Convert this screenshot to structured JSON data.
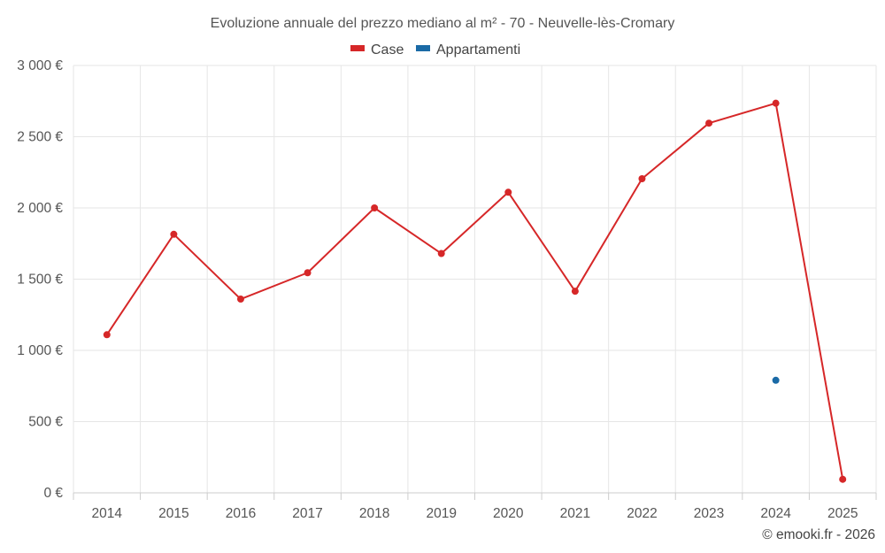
{
  "chart_data": {
    "type": "line",
    "title": "Evoluzione annuale del prezzo mediano al m² - 70 - Neuvelle-lès-Cromary",
    "categories": [
      "2014",
      "2015",
      "2016",
      "2017",
      "2018",
      "2019",
      "2020",
      "2021",
      "2022",
      "2023",
      "2024",
      "2025"
    ],
    "series": [
      {
        "name": "Case",
        "color": "#d62728",
        "values": [
          1110,
          1815,
          1360,
          1545,
          2000,
          1680,
          2110,
          1415,
          2205,
          2595,
          2735,
          95
        ]
      },
      {
        "name": "Appartamenti",
        "color": "#1a6aa6",
        "values": [
          null,
          null,
          null,
          null,
          null,
          null,
          null,
          null,
          null,
          null,
          790,
          null
        ]
      }
    ],
    "ylim": [
      0,
      3000
    ],
    "yticks": [
      0,
      500,
      1000,
      1500,
      2000,
      2500,
      3000
    ],
    "ytick_labels": [
      "0 €",
      "500 €",
      "1 000 €",
      "1 500 €",
      "2 000 €",
      "2 500 €",
      "3 000 €"
    ],
    "xlabel": "",
    "ylabel": "",
    "grid": true,
    "legend_position": "top-center"
  },
  "credit": "© emooki.fr - 2026"
}
